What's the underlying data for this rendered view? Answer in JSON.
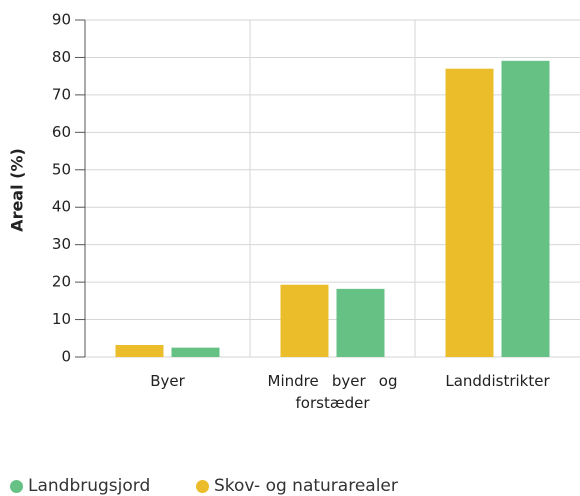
{
  "chart_data": {
    "type": "bar",
    "y_label": "Areal (%)",
    "categories": [
      "Byer",
      "Mindre byer og forstæder",
      "Landdistrikter"
    ],
    "series": [
      {
        "name": "Landbrugsjord",
        "color": "#66c184",
        "values": [
          2.5,
          18.2,
          79.1
        ]
      },
      {
        "name": "Skov- og naturarealer",
        "color": "#ebbd2b",
        "values": [
          3.2,
          19.3,
          77
        ]
      }
    ],
    "ylim": [
      0,
      90
    ],
    "yticks": [
      0,
      10,
      20,
      30,
      40,
      50,
      60,
      70,
      80,
      90
    ],
    "grid": true
  }
}
